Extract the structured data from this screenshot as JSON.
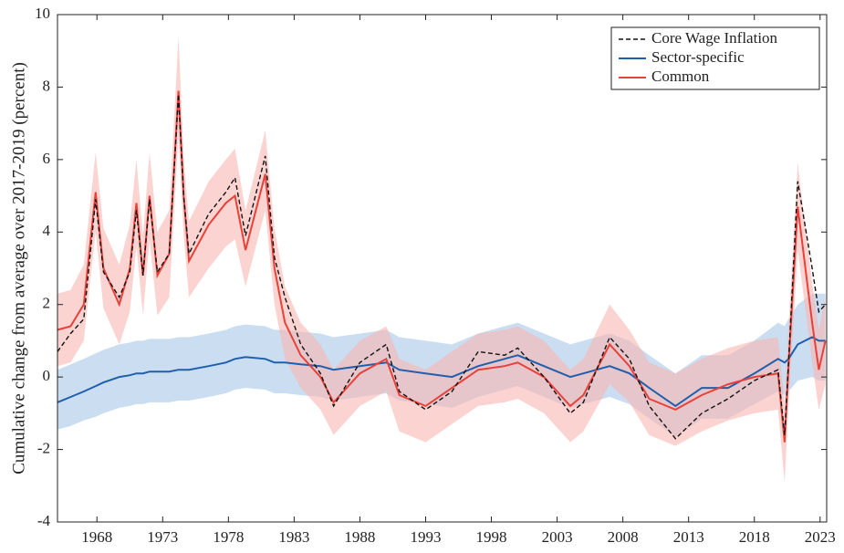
{
  "chart_data": {
    "type": "line",
    "y_label": "Cumulative change from average over 2017-2019 (percent)",
    "x": [
      1965,
      1966,
      1967,
      1967.9,
      1968.5,
      1969.7,
      1970.5,
      1971,
      1971.5,
      1972,
      1972.6,
      1973.5,
      1974.2,
      1974.6,
      1975,
      1976.5,
      1977.8,
      1978.5,
      1979.3,
      1980.8,
      1981.5,
      1982.3,
      1983.5,
      1985,
      1986,
      1988,
      1990,
      1991,
      1993,
      1995,
      1997,
      1999,
      2000,
      2002,
      2004,
      2005,
      2007,
      2008.5,
      2010,
      2012,
      2014,
      2016,
      2018,
      2019.8,
      2020.3,
      2020.6,
      2021.3,
      2022.4,
      2022.9,
      2023.4
    ],
    "series": [
      {
        "name": "Core Wage Inflation",
        "color": "#111111",
        "dashed": true,
        "values": [
          0.7,
          1.2,
          1.6,
          4.9,
          2.9,
          2.2,
          2.9,
          4.6,
          2.8,
          4.9,
          2.9,
          3.4,
          7.8,
          5.0,
          3.4,
          4.5,
          5.1,
          5.5,
          3.9,
          6.1,
          3.3,
          2.2,
          0.9,
          0.1,
          -0.8,
          0.4,
          0.9,
          -0.4,
          -0.9,
          -0.4,
          0.7,
          0.6,
          0.8,
          0.0,
          -1.0,
          -0.7,
          1.1,
          0.5,
          -0.8,
          -1.7,
          -1.0,
          -0.6,
          -0.1,
          0.2,
          -1.6,
          0.4,
          5.4,
          3.0,
          1.8,
          2.0
        ]
      },
      {
        "name": "Sector-specific",
        "color": "#1f5fad",
        "band_color": "#a9c6e6",
        "values": [
          -0.7,
          -0.55,
          -0.4,
          -0.25,
          -0.15,
          0.0,
          0.05,
          0.1,
          0.1,
          0.15,
          0.15,
          0.15,
          0.2,
          0.2,
          0.2,
          0.3,
          0.4,
          0.5,
          0.55,
          0.5,
          0.4,
          0.4,
          0.35,
          0.3,
          0.2,
          0.3,
          0.4,
          0.2,
          0.1,
          0.0,
          0.3,
          0.5,
          0.6,
          0.3,
          0.0,
          0.1,
          0.3,
          0.1,
          -0.3,
          -0.8,
          -0.3,
          -0.3,
          0.1,
          0.5,
          0.4,
          0.5,
          0.9,
          1.1,
          1.0,
          1.0
        ],
        "band_lower": [
          -1.45,
          -1.35,
          -1.2,
          -1.1,
          -1.0,
          -0.85,
          -0.8,
          -0.75,
          -0.75,
          -0.7,
          -0.7,
          -0.7,
          -0.65,
          -0.65,
          -0.65,
          -0.55,
          -0.45,
          -0.35,
          -0.3,
          -0.35,
          -0.45,
          -0.45,
          -0.5,
          -0.55,
          -0.65,
          -0.55,
          -0.45,
          -0.65,
          -0.75,
          -0.85,
          -0.55,
          -0.35,
          -0.25,
          -0.55,
          -0.85,
          -0.75,
          -0.55,
          -0.75,
          -1.15,
          -1.65,
          -1.15,
          -1.15,
          -0.75,
          -0.4,
          -0.5,
          -0.4,
          -0.1,
          0.0,
          -0.1,
          -0.1
        ],
        "band_upper": [
          0.2,
          0.35,
          0.5,
          0.65,
          0.75,
          0.9,
          0.95,
          1.0,
          1.0,
          1.05,
          1.05,
          1.05,
          1.1,
          1.1,
          1.1,
          1.2,
          1.3,
          1.4,
          1.45,
          1.4,
          1.3,
          1.3,
          1.25,
          1.2,
          1.1,
          1.2,
          1.3,
          1.1,
          1.0,
          0.9,
          1.2,
          1.4,
          1.5,
          1.2,
          0.9,
          1.0,
          1.2,
          1.0,
          0.6,
          0.1,
          0.6,
          0.6,
          1.0,
          1.5,
          1.4,
          1.6,
          2.0,
          2.3,
          2.3,
          2.3
        ]
      },
      {
        "name": "Common",
        "color": "#e8413a",
        "band_color": "#f9b8b2",
        "values": [
          1.3,
          1.4,
          2.0,
          5.1,
          3.0,
          2.0,
          3.0,
          4.8,
          2.8,
          5.0,
          2.8,
          3.4,
          7.9,
          5.0,
          3.2,
          4.2,
          4.8,
          5.0,
          3.5,
          5.6,
          3.0,
          1.5,
          0.6,
          0.0,
          -0.7,
          0.1,
          0.5,
          -0.5,
          -0.8,
          -0.3,
          0.2,
          0.3,
          0.4,
          0.0,
          -0.8,
          -0.5,
          0.9,
          0.3,
          -0.6,
          -0.9,
          -0.5,
          -0.2,
          0.0,
          0.1,
          -1.8,
          0.3,
          4.7,
          1.5,
          0.2,
          1.0
        ],
        "band_lower": [
          0.3,
          0.4,
          1.0,
          4.0,
          1.9,
          0.9,
          1.8,
          3.6,
          1.7,
          3.8,
          1.7,
          2.2,
          6.6,
          3.9,
          2.2,
          3.0,
          3.6,
          3.8,
          2.5,
          4.6,
          2.0,
          0.5,
          -0.3,
          -0.9,
          -1.6,
          -0.8,
          -0.4,
          -1.5,
          -1.8,
          -1.3,
          -0.8,
          -0.7,
          -0.6,
          -1.0,
          -1.8,
          -1.5,
          -0.2,
          -0.7,
          -1.6,
          -1.9,
          -1.5,
          -1.2,
          -1.0,
          -0.9,
          -2.9,
          -0.8,
          3.5,
          0.4,
          -0.9,
          -0.2
        ],
        "band_upper": [
          2.3,
          2.4,
          3.1,
          6.2,
          4.1,
          3.1,
          4.2,
          6.0,
          3.9,
          6.2,
          4.0,
          4.6,
          9.4,
          6.1,
          4.3,
          5.4,
          6.0,
          6.3,
          4.6,
          6.8,
          4.1,
          2.5,
          1.5,
          0.9,
          0.2,
          1.0,
          1.4,
          0.5,
          0.2,
          0.7,
          1.2,
          1.3,
          1.4,
          1.0,
          0.2,
          0.5,
          2.0,
          1.3,
          0.4,
          0.1,
          0.5,
          0.8,
          1.0,
          1.1,
          -0.7,
          1.4,
          5.9,
          2.6,
          1.3,
          2.2
        ]
      }
    ],
    "xlim": [
      1965,
      2023.5
    ],
    "xticks": [
      1968,
      1973,
      1978,
      1983,
      1988,
      1993,
      1998,
      2003,
      2008,
      2013,
      2018,
      2023
    ],
    "ylim": [
      -4,
      10
    ],
    "yticks": [
      -4,
      -2,
      0,
      2,
      4,
      6,
      8,
      10
    ],
    "grid": false,
    "legend": "upper right"
  }
}
